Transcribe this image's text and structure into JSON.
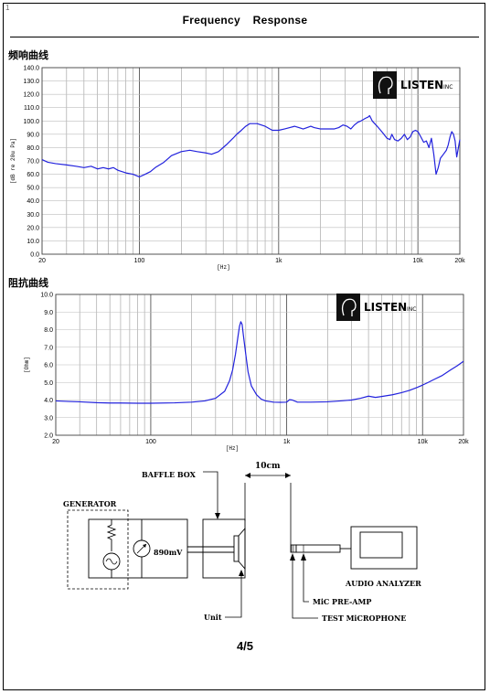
{
  "page": {
    "title": "Frequency Response",
    "page_number": "4/5",
    "corner_mark": "1"
  },
  "logo": {
    "brand": "LISTEN",
    "suffix": "INC"
  },
  "chart_data": [
    {
      "type": "line",
      "section_label": "频响曲线",
      "xscale": "log",
      "xlim": [
        20,
        20000
      ],
      "ylim": [
        0,
        140
      ],
      "xlabel": "[Hz]",
      "ylabel": "[dB re 20u Pa]",
      "yticks": [
        "0.0",
        "10.0",
        "20.0",
        "30.0",
        "40.0",
        "50.0",
        "60.0",
        "70.0",
        "80.0",
        "90.0",
        "100.0",
        "110.0",
        "120.0",
        "130.0",
        "140.0"
      ],
      "xticks": [
        "20",
        "100",
        "1k",
        "10k",
        "20k"
      ],
      "series": [
        {
          "color": "#2222dd",
          "x": [
            20,
            22,
            25,
            30,
            35,
            40,
            45,
            50,
            55,
            60,
            65,
            70,
            75,
            80,
            90,
            100,
            110,
            120,
            130,
            150,
            170,
            200,
            230,
            260,
            300,
            330,
            370,
            420,
            470,
            500,
            540,
            580,
            620,
            700,
            800,
            900,
            1000,
            1100,
            1200,
            1300,
            1400,
            1500,
            1600,
            1700,
            1800,
            2000,
            2200,
            2500,
            2700,
            2900,
            3100,
            3300,
            3500,
            3700,
            3900,
            4200,
            4400,
            4500,
            4700,
            5000,
            5400,
            5700,
            6000,
            6300,
            6500,
            6800,
            7200,
            7600,
            8000,
            8400,
            8800,
            9200,
            9600,
            10000,
            10500,
            11000,
            11500,
            12000,
            12500,
            13000,
            13500,
            14000,
            14500,
            15000,
            16000,
            16500,
            17000,
            17500,
            18000,
            18500,
            19000,
            20000
          ],
          "y": [
            71,
            69,
            68,
            67,
            66,
            65,
            66,
            64,
            65,
            64,
            65,
            63,
            62,
            61,
            60,
            58,
            60,
            62,
            65,
            69,
            74,
            77,
            78,
            77,
            76,
            75,
            77,
            82,
            87,
            90,
            93,
            96,
            98,
            98,
            96,
            93,
            93,
            94,
            95,
            96,
            95,
            94,
            95,
            96,
            95,
            94,
            94,
            94,
            95,
            97,
            96,
            94,
            97,
            99,
            100,
            102,
            103,
            104,
            100,
            97,
            93,
            90,
            87,
            86,
            90,
            86,
            85,
            87,
            90,
            86,
            88,
            92,
            93,
            92,
            88,
            84,
            85,
            80,
            87,
            75,
            60,
            65,
            72,
            74,
            78,
            82,
            88,
            92,
            90,
            85,
            73,
            86
          ]
        }
      ]
    },
    {
      "type": "line",
      "section_label": "阻抗曲线",
      "xscale": "log",
      "xlim": [
        20,
        20000
      ],
      "ylim": [
        2,
        10
      ],
      "xlabel": "[Hz]",
      "ylabel": "[Ohm]",
      "yticks": [
        "2.0",
        "3.0",
        "4.0",
        "5.0",
        "6.0",
        "7.0",
        "8.0",
        "9.0",
        "10.0"
      ],
      "xticks": [
        "20",
        "100",
        "1k",
        "10k",
        "20k"
      ],
      "series": [
        {
          "color": "#2222dd",
          "x": [
            20,
            25,
            30,
            40,
            50,
            60,
            80,
            100,
            150,
            200,
            250,
            300,
            350,
            380,
            400,
            420,
            440,
            450,
            460,
            470,
            480,
            500,
            520,
            550,
            600,
            650,
            700,
            800,
            900,
            1000,
            1050,
            1100,
            1200,
            1500,
            2000,
            2500,
            3000,
            3500,
            4000,
            4500,
            5000,
            6000,
            7000,
            8000,
            9000,
            10000,
            11000,
            12000,
            14000,
            16000,
            18000,
            20000
          ],
          "y": [
            3.95,
            3.92,
            3.9,
            3.85,
            3.83,
            3.83,
            3.82,
            3.82,
            3.84,
            3.88,
            3.95,
            4.1,
            4.5,
            5.1,
            5.7,
            6.6,
            7.7,
            8.2,
            8.45,
            8.3,
            7.7,
            6.6,
            5.6,
            4.8,
            4.3,
            4.05,
            3.95,
            3.88,
            3.87,
            3.88,
            4.02,
            4.0,
            3.88,
            3.88,
            3.9,
            3.95,
            4.0,
            4.1,
            4.22,
            4.15,
            4.2,
            4.3,
            4.42,
            4.55,
            4.7,
            4.85,
            5.0,
            5.15,
            5.4,
            5.7,
            5.95,
            6.2
          ]
        }
      ]
    }
  ],
  "diagram": {
    "generator": "GENERATOR",
    "baffle_box": "BAFFLE BOX",
    "distance": "10cm",
    "voltage": "890mV",
    "unit": "Unit",
    "audio_analyzer": "AUDIO ANALYZER",
    "mic_preamp": "MiC PRE-AMP",
    "test_mic": "TEST MiCROPHONE"
  }
}
